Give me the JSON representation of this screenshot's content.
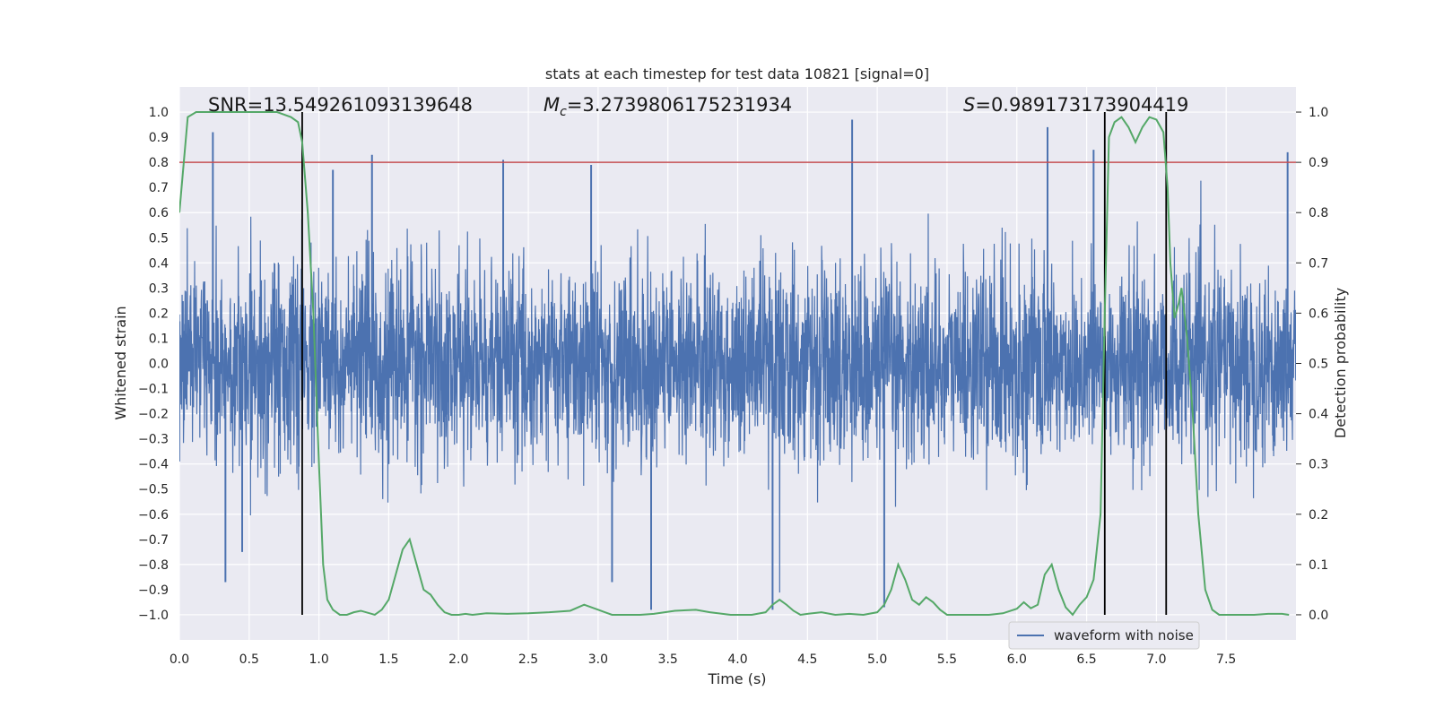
{
  "chart_data": {
    "type": "line",
    "title": "stats at each timestep for test data 10821 [signal=0]",
    "xlabel": "Time (s)",
    "ylabel": "Whitened strain",
    "y2label": "Detection probability",
    "xlim": [
      0.0,
      8.0
    ],
    "ylim": [
      -1.1,
      1.1
    ],
    "y2lim": [
      -0.05,
      1.05
    ],
    "xticks": [
      0.0,
      0.5,
      1.0,
      1.5,
      2.0,
      2.5,
      3.0,
      3.5,
      4.0,
      4.5,
      5.0,
      5.5,
      6.0,
      6.5,
      7.0,
      7.5
    ],
    "xtick_labels": [
      "0.0",
      "0.5",
      "1.0",
      "1.5",
      "2.0",
      "2.5",
      "3.0",
      "3.5",
      "4.0",
      "4.5",
      "5.0",
      "5.5",
      "6.0",
      "6.5",
      "7.0",
      "7.5"
    ],
    "yticks": [
      1.0,
      0.9,
      0.8,
      0.7,
      0.6,
      0.5,
      0.4,
      0.3,
      0.2,
      0.1,
      0.0,
      -0.1,
      -0.2,
      -0.3,
      -0.4,
      -0.5,
      -0.6,
      -0.7,
      -0.8,
      -0.9,
      -1.0
    ],
    "ytick_labels": [
      "1.0",
      "0.9",
      "0.8",
      "0.7",
      "0.6",
      "0.5",
      "0.4",
      "0.3",
      "0.2",
      "0.1",
      "0.0",
      "−0.1",
      "−0.2",
      "−0.3",
      "−0.4",
      "−0.5",
      "−0.6",
      "−0.7",
      "−0.8",
      "−0.9",
      "−1.0"
    ],
    "y2ticks": [
      1.0,
      0.9,
      0.8,
      0.7,
      0.6,
      0.5,
      0.4,
      0.3,
      0.2,
      0.1,
      0.0
    ],
    "y2tick_labels": [
      "1.0",
      "0.9",
      "0.8",
      "0.7",
      "0.6",
      "0.5",
      "0.4",
      "0.3",
      "0.2",
      "0.1",
      "0.0"
    ],
    "grid": true,
    "legend": {
      "position": "bottom-right",
      "entries": [
        "waveform with noise"
      ]
    },
    "annotations": {
      "snr": "SNR=13.549261093139648",
      "mc_symbol": "M",
      "mc_sub": "c",
      "mc_value": "=3.2739806175231934",
      "s_symbol": "S",
      "s_value": "=0.989173173904419"
    },
    "series": [
      {
        "name": "waveform with noise",
        "axis": "left",
        "color": "#4c72b0",
        "style": "noise",
        "duration": 8.0,
        "std": 0.19,
        "spikes": [
          {
            "x": 0.24,
            "y": 0.92
          },
          {
            "x": 0.33,
            "y": -0.87
          },
          {
            "x": 0.45,
            "y": -0.75
          },
          {
            "x": 1.1,
            "y": 0.77
          },
          {
            "x": 1.38,
            "y": 0.83
          },
          {
            "x": 2.32,
            "y": 0.81
          },
          {
            "x": 2.95,
            "y": 0.79
          },
          {
            "x": 3.1,
            "y": -0.87
          },
          {
            "x": 3.38,
            "y": -0.98
          },
          {
            "x": 4.25,
            "y": -0.98
          },
          {
            "x": 4.82,
            "y": 0.97
          },
          {
            "x": 5.05,
            "y": -0.97
          },
          {
            "x": 6.22,
            "y": 0.94
          },
          {
            "x": 6.55,
            "y": 0.85
          },
          {
            "x": 7.94,
            "y": 0.84
          }
        ]
      },
      {
        "name": "",
        "axis": "right",
        "color": "#55a868",
        "x": [
          0.0,
          0.06,
          0.12,
          0.3,
          0.5,
          0.7,
          0.8,
          0.85,
          0.88,
          0.92,
          0.96,
          1.0,
          1.03,
          1.06,
          1.1,
          1.15,
          1.2,
          1.25,
          1.3,
          1.4,
          1.45,
          1.5,
          1.55,
          1.6,
          1.65,
          1.7,
          1.75,
          1.8,
          1.85,
          1.9,
          1.95,
          2.0,
          2.05,
          2.1,
          2.2,
          2.35,
          2.5,
          2.65,
          2.8,
          2.9,
          3.0,
          3.05,
          3.1,
          3.2,
          3.3,
          3.4,
          3.55,
          3.7,
          3.8,
          3.95,
          4.1,
          4.2,
          4.25,
          4.3,
          4.35,
          4.4,
          4.45,
          4.5,
          4.6,
          4.7,
          4.8,
          4.9,
          5.0,
          5.05,
          5.1,
          5.15,
          5.2,
          5.25,
          5.3,
          5.35,
          5.4,
          5.45,
          5.5,
          5.6,
          5.7,
          5.8,
          5.9,
          6.0,
          6.05,
          6.1,
          6.15,
          6.2,
          6.25,
          6.3,
          6.35,
          6.4,
          6.45,
          6.5,
          6.55,
          6.6,
          6.63,
          6.66,
          6.7,
          6.75,
          6.8,
          6.85,
          6.9,
          6.95,
          7.0,
          7.05,
          7.08,
          7.1,
          7.13,
          7.16,
          7.18,
          7.22,
          7.26,
          7.3,
          7.35,
          7.4,
          7.45,
          7.5,
          7.6,
          7.7,
          7.8,
          7.9,
          7.95
        ],
        "values": [
          0.8,
          0.99,
          1.0,
          1.0,
          1.0,
          1.0,
          0.99,
          0.98,
          0.94,
          0.8,
          0.6,
          0.3,
          0.1,
          0.03,
          0.01,
          0.0,
          0.0,
          0.005,
          0.008,
          0.0,
          0.01,
          0.03,
          0.08,
          0.13,
          0.15,
          0.1,
          0.05,
          0.04,
          0.02,
          0.005,
          0.0,
          0.0,
          0.002,
          0.0,
          0.003,
          0.002,
          0.003,
          0.005,
          0.008,
          0.02,
          0.01,
          0.005,
          0.0,
          0.0,
          0.0,
          0.002,
          0.008,
          0.01,
          0.005,
          0.0,
          0.0,
          0.005,
          0.02,
          0.03,
          0.02,
          0.008,
          0.0,
          0.002,
          0.005,
          0.0,
          0.002,
          0.0,
          0.005,
          0.02,
          0.05,
          0.1,
          0.07,
          0.03,
          0.02,
          0.035,
          0.025,
          0.01,
          0.0,
          0.0,
          0.0,
          0.0,
          0.003,
          0.012,
          0.025,
          0.013,
          0.02,
          0.08,
          0.1,
          0.05,
          0.015,
          0.0,
          0.02,
          0.035,
          0.07,
          0.2,
          0.6,
          0.95,
          0.98,
          0.99,
          0.97,
          0.94,
          0.97,
          0.99,
          0.985,
          0.96,
          0.85,
          0.7,
          0.59,
          0.62,
          0.65,
          0.55,
          0.4,
          0.2,
          0.05,
          0.01,
          0.0,
          0.0,
          0.0,
          0.0,
          0.002,
          0.002,
          0.0
        ]
      }
    ],
    "threshold": {
      "axis": "right",
      "value": 0.9,
      "color": "#c44e52"
    },
    "vlines": [
      0.88,
      6.63,
      7.07
    ]
  }
}
